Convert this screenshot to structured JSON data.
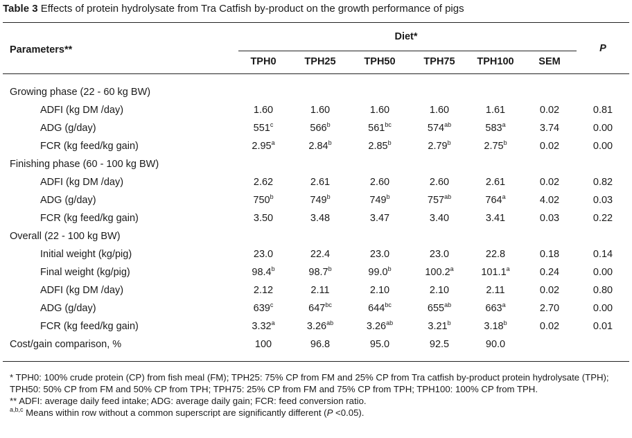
{
  "title": {
    "label": "Table 3",
    "text": "Effects of protein hydrolysate from Tra Catfish by-product on the growth performance of pigs"
  },
  "header": {
    "parameters": "Parameters**",
    "diet": "Diet*",
    "columns": [
      "TPH0",
      "TPH25",
      "TPH50",
      "TPH75",
      "TPH100",
      "SEM"
    ],
    "p": "P"
  },
  "rows": [
    {
      "type": "section",
      "label": "Growing phase (22 - 60 kg BW)"
    },
    {
      "type": "row",
      "label": "ADFI (kg DM /day)",
      "values": [
        [
          "1.60",
          ""
        ],
        [
          "1.60",
          ""
        ],
        [
          "1.60",
          ""
        ],
        [
          "1.60",
          ""
        ],
        [
          "1.61",
          ""
        ]
      ],
      "sem": "0.02",
      "p": "0.81"
    },
    {
      "type": "row",
      "label": "ADG (g/day)",
      "values": [
        [
          "551",
          "c"
        ],
        [
          "566",
          "b"
        ],
        [
          "561",
          "bc"
        ],
        [
          "574",
          "ab"
        ],
        [
          "583",
          "a"
        ]
      ],
      "sem": "3.74",
      "p": "0.00"
    },
    {
      "type": "row",
      "label": "FCR (kg feed/kg gain)",
      "values": [
        [
          "2.95",
          "a"
        ],
        [
          "2.84",
          "b"
        ],
        [
          "2.85",
          "b"
        ],
        [
          "2.79",
          "b"
        ],
        [
          "2.75",
          "b"
        ]
      ],
      "sem": "0.02",
      "p": "0.00"
    },
    {
      "type": "section",
      "label": "Finishing phase (60 - 100 kg BW)"
    },
    {
      "type": "row",
      "label": "ADFI (kg DM /day)",
      "values": [
        [
          "2.62",
          ""
        ],
        [
          "2.61",
          ""
        ],
        [
          "2.60",
          ""
        ],
        [
          "2.60",
          ""
        ],
        [
          "2.61",
          ""
        ]
      ],
      "sem": "0.02",
      "p": "0.82"
    },
    {
      "type": "row",
      "label": "ADG (g/day)",
      "values": [
        [
          "750",
          "b"
        ],
        [
          "749",
          "b"
        ],
        [
          "749",
          "b"
        ],
        [
          "757",
          "ab"
        ],
        [
          "764",
          "a"
        ]
      ],
      "sem": "4.02",
      "p": "0.03"
    },
    {
      "type": "row",
      "label": "FCR (kg feed/kg gain)",
      "values": [
        [
          "3.50",
          ""
        ],
        [
          "3.48",
          ""
        ],
        [
          "3.47",
          ""
        ],
        [
          "3.40",
          ""
        ],
        [
          "3.41",
          ""
        ]
      ],
      "sem": "0.03",
      "p": "0.22"
    },
    {
      "type": "section",
      "label": "Overall (22 - 100 kg BW)"
    },
    {
      "type": "row",
      "label": "Initial weight (kg/pig)",
      "values": [
        [
          "23.0",
          ""
        ],
        [
          "22.4",
          ""
        ],
        [
          "23.0",
          ""
        ],
        [
          "23.0",
          ""
        ],
        [
          "22.8",
          ""
        ]
      ],
      "sem": "0.18",
      "p": "0.14"
    },
    {
      "type": "row",
      "label": "Final weight (kg/pig)",
      "values": [
        [
          "98.4",
          "b"
        ],
        [
          "98.7",
          "b"
        ],
        [
          "99.0",
          "b"
        ],
        [
          "100.2",
          "a"
        ],
        [
          "101.1",
          "a"
        ]
      ],
      "sem": "0.24",
      "p": "0.00"
    },
    {
      "type": "row",
      "label": "ADFI (kg DM /day)",
      "values": [
        [
          "2.12",
          ""
        ],
        [
          "2.11",
          ""
        ],
        [
          "2.10",
          ""
        ],
        [
          "2.10",
          ""
        ],
        [
          "2.11",
          ""
        ]
      ],
      "sem": "0.02",
      "p": "0.80"
    },
    {
      "type": "row",
      "label": "ADG (g/day)",
      "values": [
        [
          "639",
          "c"
        ],
        [
          "647",
          "bc"
        ],
        [
          "644",
          "bc"
        ],
        [
          "655",
          "ab"
        ],
        [
          "663",
          "a"
        ]
      ],
      "sem": "2.70",
      "p": "0.00"
    },
    {
      "type": "row",
      "label": "FCR (kg feed/kg gain)",
      "values": [
        [
          "3.32",
          "a"
        ],
        [
          "3.26",
          "ab"
        ],
        [
          "3.26",
          "ab"
        ],
        [
          "3.21",
          "b"
        ],
        [
          "3.18",
          "b"
        ]
      ],
      "sem": "0.02",
      "p": "0.01"
    },
    {
      "type": "total",
      "label": "Cost/gain comparison, %",
      "values": [
        [
          "100",
          ""
        ],
        [
          "96.8",
          ""
        ],
        [
          "95.0",
          ""
        ],
        [
          "92.5",
          ""
        ],
        [
          "90.0",
          ""
        ]
      ],
      "sem": "",
      "p": ""
    }
  ],
  "footnotes": {
    "diet": "* TPH0: 100% crude protein (CP) from fish meal (FM); TPH25: 75% CP from FM and 25% CP from Tra catfish by-product protein hydrolysate (TPH); TPH50: 50% CP from FM and 50% CP from TPH; TPH75: 25% CP from FM and 75% CP from TPH; TPH100: 100% CP from TPH.",
    "abbrev": "** ADFI: average daily feed intake; ADG: average daily gain; FCR: feed conversion ratio.",
    "sig_sup": "a,b,c",
    "sig_text": " Means within row without a  common superscript are significantly different (",
    "sig_p": "P",
    "sig_end": " <0.05)."
  }
}
